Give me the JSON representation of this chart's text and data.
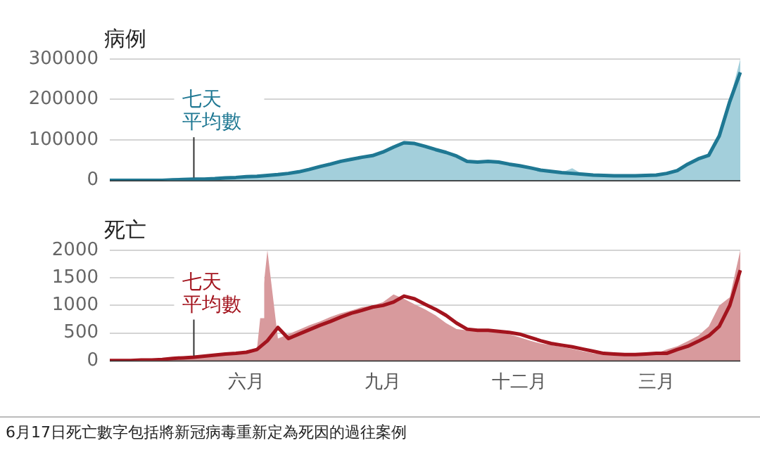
{
  "chart_data": [
    {
      "type": "line",
      "title": "病例",
      "grid": "y",
      "legend": false,
      "ylim": [
        0,
        300000
      ],
      "yticks": [
        0,
        100000,
        200000,
        300000
      ],
      "categories": [
        null,
        null,
        null,
        null,
        null,
        null,
        null,
        null,
        null,
        null,
        null,
        null,
        null,
        null,
        null,
        null,
        null,
        null,
        null,
        null,
        null,
        null,
        null,
        null,
        null,
        null,
        null,
        null,
        null,
        null,
        null,
        null,
        null,
        null,
        null,
        null,
        null,
        null,
        null,
        null,
        null,
        null,
        null,
        null,
        null,
        null,
        null,
        null,
        null,
        null,
        null,
        null,
        null,
        null,
        null,
        null,
        null,
        null,
        null,
        null,
        null
      ],
      "series": [
        {
          "type": "area",
          "color": "#a3cfdb",
          "values": [
            0,
            0,
            0,
            0,
            0,
            0,
            1000,
            2000,
            3000,
            3000,
            4000,
            6000,
            7000,
            9000,
            10000,
            12000,
            14000,
            17000,
            21000,
            27000,
            34000,
            40000,
            47000,
            52000,
            57000,
            61000,
            70000,
            82000,
            96000,
            90000,
            84000,
            76000,
            69000,
            60000,
            47000,
            45000,
            47000,
            45000,
            40000,
            36000,
            31000,
            25000,
            22000,
            19000,
            30000,
            15000,
            13000,
            12000,
            11000,
            11000,
            11000,
            12000,
            13000,
            17000,
            24000,
            40000,
            53000,
            62000,
            110000,
            200000,
            300000
          ]
        },
        {
          "name": "七天平均數",
          "color": "#1f7893",
          "values": [
            0,
            0,
            0,
            0,
            0,
            0,
            1000,
            2000,
            3000,
            3000,
            4000,
            6000,
            7000,
            9000,
            10000,
            12000,
            14000,
            17000,
            21000,
            27000,
            34000,
            40000,
            47000,
            52000,
            57000,
            61000,
            70000,
            82000,
            93000,
            91000,
            84000,
            76000,
            69000,
            60000,
            47000,
            45000,
            47000,
            45000,
            40000,
            36000,
            31000,
            25000,
            22000,
            19000,
            17000,
            15000,
            13000,
            12000,
            11000,
            11000,
            11000,
            12000,
            13000,
            17000,
            24000,
            40000,
            53000,
            62000,
            110000,
            195000,
            267000
          ]
        }
      ]
    },
    {
      "type": "line",
      "title": "死亡",
      "grid": "y",
      "legend": false,
      "ylim": [
        0,
        2000
      ],
      "yticks": [
        0,
        500,
        1000,
        1500,
        2000
      ],
      "categories": [
        null,
        null,
        null,
        null,
        null,
        null,
        null,
        null,
        null,
        null,
        null,
        null,
        null,
        "六月",
        null,
        null,
        null,
        null,
        null,
        null,
        null,
        null,
        null,
        null,
        null,
        null,
        "九月",
        null,
        null,
        null,
        null,
        null,
        null,
        null,
        null,
        null,
        null,
        null,
        null,
        "十二月",
        null,
        null,
        null,
        null,
        null,
        null,
        null,
        null,
        null,
        null,
        null,
        null,
        "三月",
        null,
        null,
        null,
        null,
        null,
        null,
        null,
        null
      ],
      "series": [
        {
          "type": "area",
          "color": "#d89a9d",
          "values": [
            0,
            0,
            0,
            10,
            10,
            20,
            40,
            50,
            60,
            80,
            100,
            120,
            130,
            150,
            200,
            2000,
            400,
            480,
            560,
            640,
            710,
            790,
            860,
            910,
            970,
            1000,
            1060,
            1200,
            1120,
            1020,
            930,
            820,
            680,
            570,
            550,
            550,
            530,
            510,
            480,
            420,
            360,
            310,
            280,
            250,
            210,
            170,
            130,
            120,
            110,
            110,
            120,
            130,
            130,
            200,
            260,
            350,
            450,
            620,
            1000,
            1150,
            2000
          ]
        },
        {
          "name": "七天平均數",
          "color": "#a3141e",
          "values": [
            0,
            0,
            0,
            10,
            10,
            20,
            40,
            50,
            60,
            80,
            100,
            120,
            130,
            150,
            200,
            360,
            600,
            400,
            480,
            560,
            640,
            710,
            790,
            860,
            910,
            970,
            1000,
            1060,
            1170,
            1120,
            1020,
            930,
            820,
            680,
            570,
            550,
            550,
            530,
            510,
            480,
            420,
            360,
            310,
            280,
            250,
            210,
            170,
            130,
            120,
            110,
            110,
            120,
            130,
            130,
            200,
            260,
            350,
            450,
            620,
            1000,
            1640
          ]
        }
      ],
      "annotations": [
        "6月17日死亡數字包括將新冠病毒重新定為死因的過往案例"
      ]
    }
  ]
}
